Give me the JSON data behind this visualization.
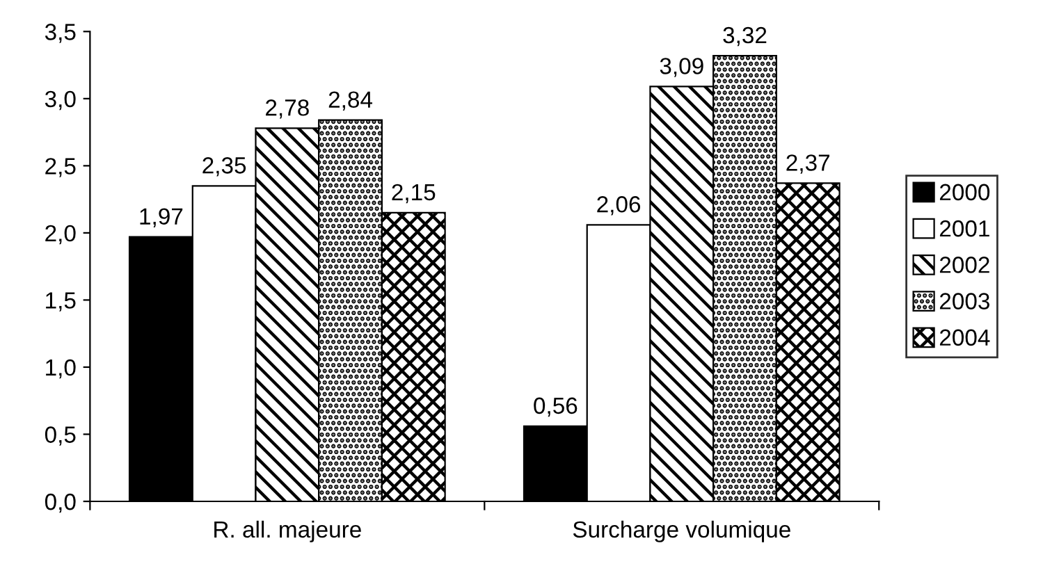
{
  "chart_data": {
    "type": "bar",
    "categories": [
      "R. all. majeure",
      "Surcharge volumique"
    ],
    "series": [
      {
        "name": "2000",
        "color": "#000000",
        "values": [
          1.97,
          0.56
        ],
        "value_labels": [
          "1,97",
          "0,56"
        ]
      },
      {
        "name": "2001",
        "color": "#ffffff",
        "values": [
          2.35,
          2.06
        ],
        "value_labels": [
          "2,35",
          "2,06"
        ]
      },
      {
        "name": "2002",
        "color": "#000000",
        "values": [
          2.78,
          3.09
        ],
        "value_labels": [
          "2,78",
          "3,09"
        ]
      },
      {
        "name": "2003",
        "color": "#000000",
        "values": [
          2.84,
          3.32
        ],
        "value_labels": [
          "2,84",
          "3,32"
        ]
      },
      {
        "name": "2004",
        "color": "#000000",
        "values": [
          2.15,
          2.37
        ],
        "value_labels": [
          "2,15",
          "2,37"
        ]
      }
    ],
    "ylim": [
      0,
      3.5
    ],
    "yticks": [
      {
        "value": 0,
        "label": "0,0"
      },
      {
        "value": 0.5,
        "label": "0,5"
      },
      {
        "value": 1,
        "label": "1,0"
      },
      {
        "value": 1.5,
        "label": "1,5"
      },
      {
        "value": 2,
        "label": "2,0"
      },
      {
        "value": 2.5,
        "label": "2,5"
      },
      {
        "value": 3,
        "label": "3,0"
      },
      {
        "value": 3.5,
        "label": "3,5"
      }
    ],
    "grid": false,
    "legend": "right"
  }
}
